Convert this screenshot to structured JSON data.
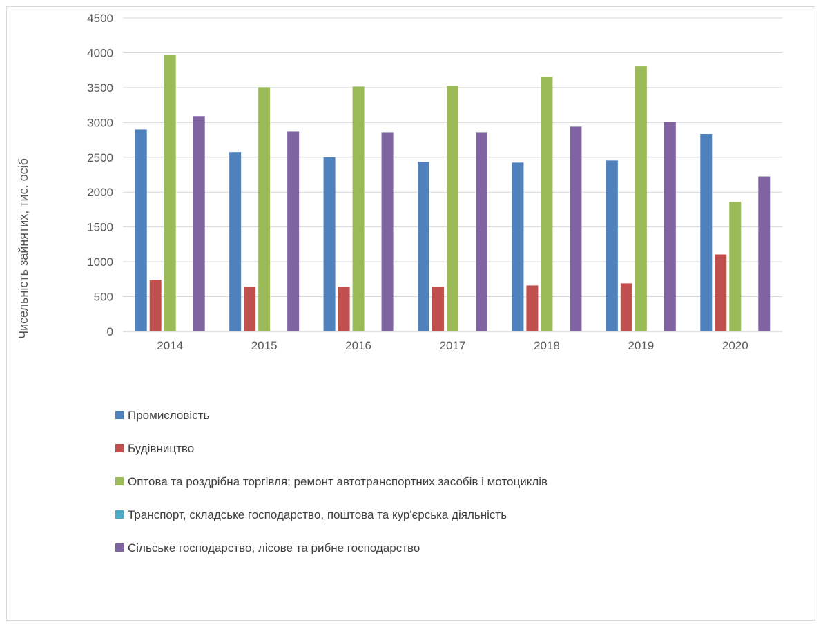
{
  "chart_data": {
    "type": "bar",
    "title": "",
    "xlabel": "",
    "ylabel": "Чисельність зайнятих, тис. осіб",
    "ylim": [
      0,
      4500
    ],
    "yticks": [
      0,
      500,
      1000,
      1500,
      2000,
      2500,
      3000,
      3500,
      4000,
      4500
    ],
    "grid": true,
    "legend_position": "bottom",
    "categories": [
      "2014",
      "2015",
      "2016",
      "2017",
      "2018",
      "2019",
      "2020"
    ],
    "series": [
      {
        "name": "Промисловість",
        "color": "#4f81bd",
        "values": [
          2900,
          2575,
          2500,
          2435,
          2425,
          2455,
          2835
        ]
      },
      {
        "name": "Будівництво",
        "color": "#c0504d",
        "values": [
          740,
          640,
          640,
          640,
          660,
          690,
          1105
        ]
      },
      {
        "name": "Оптова та роздрібна торгівля; ремонт автотранспортних засобів і мотоциклів",
        "color": "#9bbb59",
        "values": [
          3965,
          3505,
          3515,
          3525,
          3655,
          3805,
          1860
        ]
      },
      {
        "name": "Транспорт, складське господарство, поштова та кур'єрська діяльність",
        "color": "#4bacc6",
        "values": [
          0,
          0,
          0,
          0,
          0,
          0,
          0
        ]
      },
      {
        "name": "Сільське господарство, лісове та рибне господарство",
        "color": "#8064a2",
        "values": [
          3090,
          2870,
          2860,
          2860,
          2940,
          3010,
          2225
        ]
      }
    ]
  }
}
